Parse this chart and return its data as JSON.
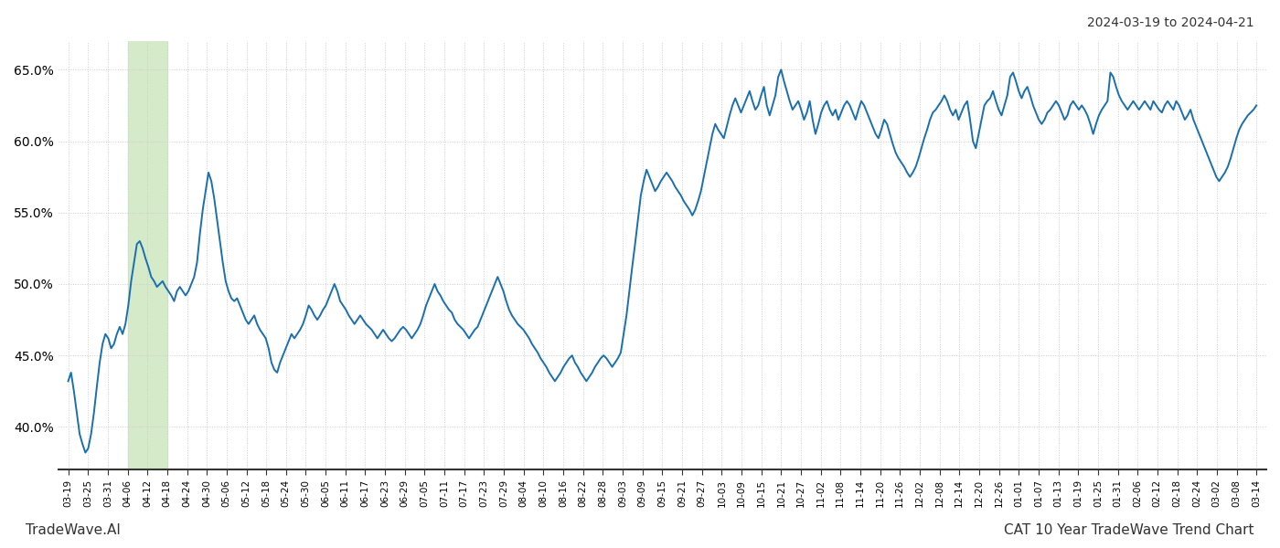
{
  "title_top_right": "2024-03-19 to 2024-04-21",
  "title_bottom_right": "CAT 10 Year TradeWave Trend Chart",
  "title_bottom_left": "TradeWave.AI",
  "line_color": "#1a6faf",
  "line_width": 1.4,
  "background_color": "#ffffff",
  "grid_color": "#cccccc",
  "grid_style": ":",
  "shade_color": "#d4eac8",
  "ylim": [
    37.0,
    67.0
  ],
  "yticks": [
    40.0,
    45.0,
    50.0,
    55.0,
    60.0,
    65.0
  ],
  "x_labels": [
    "03-19",
    "03-25",
    "03-31",
    "04-06",
    "04-12",
    "04-18",
    "04-24",
    "04-30",
    "05-06",
    "05-12",
    "05-18",
    "05-24",
    "05-30",
    "06-05",
    "06-11",
    "06-17",
    "06-23",
    "06-29",
    "07-05",
    "07-11",
    "07-17",
    "07-23",
    "07-29",
    "08-04",
    "08-10",
    "08-16",
    "08-22",
    "08-28",
    "09-03",
    "09-09",
    "09-15",
    "09-21",
    "09-27",
    "10-03",
    "10-09",
    "10-15",
    "10-21",
    "10-27",
    "11-02",
    "11-08",
    "11-14",
    "11-20",
    "11-26",
    "12-02",
    "12-08",
    "12-14",
    "12-20",
    "12-26",
    "01-01",
    "01-07",
    "01-13",
    "01-19",
    "01-25",
    "01-31",
    "02-06",
    "02-12",
    "02-18",
    "02-24",
    "03-02",
    "03-08",
    "03-14"
  ],
  "shade_label_start": "04-06",
  "shade_label_end": "04-18",
  "y_data": [
    43.2,
    43.8,
    42.5,
    41.0,
    39.5,
    38.8,
    38.2,
    38.5,
    39.5,
    41.0,
    42.8,
    44.5,
    45.8,
    46.5,
    46.2,
    45.5,
    45.8,
    46.5,
    47.0,
    46.5,
    47.2,
    48.5,
    50.2,
    51.5,
    52.8,
    53.0,
    52.5,
    51.8,
    51.2,
    50.5,
    50.2,
    49.8,
    50.0,
    50.2,
    49.8,
    49.5,
    49.2,
    48.8,
    49.5,
    49.8,
    49.5,
    49.2,
    49.5,
    50.0,
    50.5,
    51.5,
    53.5,
    55.2,
    56.5,
    57.8,
    57.2,
    56.0,
    54.5,
    53.0,
    51.5,
    50.2,
    49.5,
    49.0,
    48.8,
    49.0,
    48.5,
    48.0,
    47.5,
    47.2,
    47.5,
    47.8,
    47.2,
    46.8,
    46.5,
    46.2,
    45.5,
    44.5,
    44.0,
    43.8,
    44.5,
    45.0,
    45.5,
    46.0,
    46.5,
    46.2,
    46.5,
    46.8,
    47.2,
    47.8,
    48.5,
    48.2,
    47.8,
    47.5,
    47.8,
    48.2,
    48.5,
    49.0,
    49.5,
    50.0,
    49.5,
    48.8,
    48.5,
    48.2,
    47.8,
    47.5,
    47.2,
    47.5,
    47.8,
    47.5,
    47.2,
    47.0,
    46.8,
    46.5,
    46.2,
    46.5,
    46.8,
    46.5,
    46.2,
    46.0,
    46.2,
    46.5,
    46.8,
    47.0,
    46.8,
    46.5,
    46.2,
    46.5,
    46.8,
    47.2,
    47.8,
    48.5,
    49.0,
    49.5,
    50.0,
    49.5,
    49.2,
    48.8,
    48.5,
    48.2,
    48.0,
    47.5,
    47.2,
    47.0,
    46.8,
    46.5,
    46.2,
    46.5,
    46.8,
    47.0,
    47.5,
    48.0,
    48.5,
    49.0,
    49.5,
    50.0,
    50.5,
    50.0,
    49.5,
    48.8,
    48.2,
    47.8,
    47.5,
    47.2,
    47.0,
    46.8,
    46.5,
    46.2,
    45.8,
    45.5,
    45.2,
    44.8,
    44.5,
    44.2,
    43.8,
    43.5,
    43.2,
    43.5,
    43.8,
    44.2,
    44.5,
    44.8,
    45.0,
    44.5,
    44.2,
    43.8,
    43.5,
    43.2,
    43.5,
    43.8,
    44.2,
    44.5,
    44.8,
    45.0,
    44.8,
    44.5,
    44.2,
    44.5,
    44.8,
    45.2,
    46.5,
    47.8,
    49.5,
    51.2,
    52.8,
    54.5,
    56.2,
    57.2,
    58.0,
    57.5,
    57.0,
    56.5,
    56.8,
    57.2,
    57.5,
    57.8,
    57.5,
    57.2,
    56.8,
    56.5,
    56.2,
    55.8,
    55.5,
    55.2,
    54.8,
    55.2,
    55.8,
    56.5,
    57.5,
    58.5,
    59.5,
    60.5,
    61.2,
    60.8,
    60.5,
    60.2,
    61.0,
    61.8,
    62.5,
    63.0,
    62.5,
    62.0,
    62.5,
    63.0,
    63.5,
    62.8,
    62.2,
    62.5,
    63.2,
    63.8,
    62.5,
    61.8,
    62.5,
    63.2,
    64.5,
    65.0,
    64.2,
    63.5,
    62.8,
    62.2,
    62.5,
    62.8,
    62.2,
    61.5,
    62.0,
    62.8,
    61.5,
    60.5,
    61.2,
    62.0,
    62.5,
    62.8,
    62.2,
    61.8,
    62.2,
    61.5,
    62.0,
    62.5,
    62.8,
    62.5,
    62.0,
    61.5,
    62.2,
    62.8,
    62.5,
    62.0,
    61.5,
    61.0,
    60.5,
    60.2,
    60.8,
    61.5,
    61.2,
    60.5,
    59.8,
    59.2,
    58.8,
    58.5,
    58.2,
    57.8,
    57.5,
    57.8,
    58.2,
    58.8,
    59.5,
    60.2,
    60.8,
    61.5,
    62.0,
    62.2,
    62.5,
    62.8,
    63.2,
    62.8,
    62.2,
    61.8,
    62.2,
    61.5,
    62.0,
    62.5,
    62.8,
    61.5,
    60.0,
    59.5,
    60.5,
    61.5,
    62.5,
    62.8,
    63.0,
    63.5,
    62.8,
    62.2,
    61.8,
    62.5,
    63.2,
    64.5,
    64.8,
    64.2,
    63.5,
    63.0,
    63.5,
    63.8,
    63.2,
    62.5,
    62.0,
    61.5,
    61.2,
    61.5,
    62.0,
    62.2,
    62.5,
    62.8,
    62.5,
    62.0,
    61.5,
    61.8,
    62.5,
    62.8,
    62.5,
    62.2,
    62.5,
    62.2,
    61.8,
    61.2,
    60.5,
    61.2,
    61.8,
    62.2,
    62.5,
    62.8,
    64.8,
    64.5,
    63.8,
    63.2,
    62.8,
    62.5,
    62.2,
    62.5,
    62.8,
    62.5,
    62.2,
    62.5,
    62.8,
    62.5,
    62.2,
    62.8,
    62.5,
    62.2,
    62.0,
    62.5,
    62.8,
    62.5,
    62.2,
    62.8,
    62.5,
    62.0,
    61.5,
    61.8,
    62.2,
    61.5,
    61.0,
    60.5,
    60.0,
    59.5,
    59.0,
    58.5,
    58.0,
    57.5,
    57.2,
    57.5,
    57.8,
    58.2,
    58.8,
    59.5,
    60.2,
    60.8,
    61.2,
    61.5,
    61.8,
    62.0,
    62.2,
    62.5
  ]
}
